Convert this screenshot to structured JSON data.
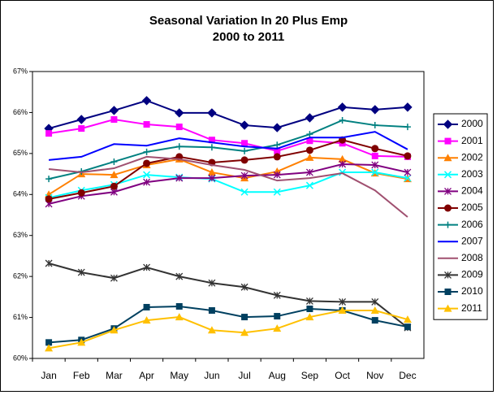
{
  "chart_data": {
    "type": "line",
    "title": "Seasonal Variation In 20 Plus Emp",
    "subtitle": "2000 to 2011",
    "categories": [
      "Jan",
      "Feb",
      "Mar",
      "Apr",
      "May",
      "Jun",
      "Jul",
      "Aug",
      "Sep",
      "Oct",
      "Nov",
      "Dec"
    ],
    "ylim": [
      60,
      67
    ],
    "yticks": [
      {
        "value": 60,
        "label": "60%"
      },
      {
        "value": 61,
        "label": "61%"
      },
      {
        "value": 62,
        "label": "62%"
      },
      {
        "value": 63,
        "label": "63%"
      },
      {
        "value": 64,
        "label": "64%"
      },
      {
        "value": 65,
        "label": "65%"
      },
      {
        "value": 66,
        "label": "66%"
      },
      {
        "value": 67,
        "label": "67%"
      }
    ],
    "grid": false,
    "legend": "right",
    "series": [
      {
        "name": "2000",
        "color": "#000080",
        "marker": "diamond",
        "values": [
          65.61,
          65.83,
          66.05,
          66.29,
          65.99,
          65.99,
          65.69,
          65.63,
          65.87,
          66.13,
          66.07,
          66.13
        ]
      },
      {
        "name": "2001",
        "color": "#ff00ff",
        "marker": "square",
        "values": [
          65.49,
          65.61,
          65.83,
          65.71,
          65.65,
          65.33,
          65.25,
          65.06,
          65.31,
          65.25,
          64.94,
          64.92
        ]
      },
      {
        "name": "2002",
        "color": "#ff8000",
        "marker": "triangle",
        "values": [
          64.0,
          64.5,
          64.48,
          64.72,
          64.86,
          64.54,
          64.4,
          64.56,
          64.9,
          64.86,
          64.52,
          64.38
        ]
      },
      {
        "name": "2003",
        "color": "#00ffff",
        "marker": "x",
        "values": [
          63.92,
          64.1,
          64.24,
          64.48,
          64.42,
          64.38,
          64.06,
          64.06,
          64.22,
          64.54,
          64.54,
          64.4
        ]
      },
      {
        "name": "2004",
        "color": "#800080",
        "marker": "star",
        "values": [
          63.77,
          63.96,
          64.06,
          64.3,
          64.4,
          64.4,
          64.46,
          64.48,
          64.54,
          64.74,
          64.72,
          64.54
        ]
      },
      {
        "name": "2005",
        "color": "#800000",
        "marker": "circle",
        "values": [
          63.89,
          64.04,
          64.2,
          64.76,
          64.92,
          64.78,
          64.84,
          64.92,
          65.08,
          65.33,
          65.12,
          64.94
        ]
      },
      {
        "name": "2006",
        "color": "#008080",
        "marker": "plus",
        "values": [
          64.38,
          64.56,
          64.8,
          65.04,
          65.17,
          65.15,
          65.06,
          65.21,
          65.47,
          65.81,
          65.69,
          65.65
        ]
      },
      {
        "name": "2007",
        "color": "#0000ff",
        "marker": "none",
        "values": [
          64.84,
          64.92,
          65.23,
          65.19,
          65.37,
          65.27,
          65.17,
          65.12,
          65.39,
          65.39,
          65.53,
          65.1
        ]
      },
      {
        "name": "2008",
        "color": "#a05070",
        "marker": "none",
        "values": [
          64.62,
          64.54,
          64.64,
          64.92,
          64.86,
          64.72,
          64.6,
          64.34,
          64.4,
          64.52,
          64.1,
          63.45
        ]
      },
      {
        "name": "2009",
        "color": "#333333",
        "marker": "star",
        "values": [
          62.32,
          62.1,
          61.96,
          62.22,
          62.0,
          61.84,
          61.74,
          61.54,
          61.4,
          61.38,
          61.38,
          60.75
        ]
      },
      {
        "name": "2010",
        "color": "#004060",
        "marker": "square",
        "values": [
          60.39,
          60.45,
          60.73,
          61.25,
          61.27,
          61.17,
          61.01,
          61.03,
          61.21,
          61.17,
          60.93,
          60.77
        ]
      },
      {
        "name": "2011",
        "color": "#ffc000",
        "marker": "triangle",
        "values": [
          60.25,
          60.39,
          60.69,
          60.93,
          61.01,
          60.69,
          60.63,
          60.73,
          61.01,
          61.17,
          61.17,
          60.95
        ]
      }
    ]
  }
}
